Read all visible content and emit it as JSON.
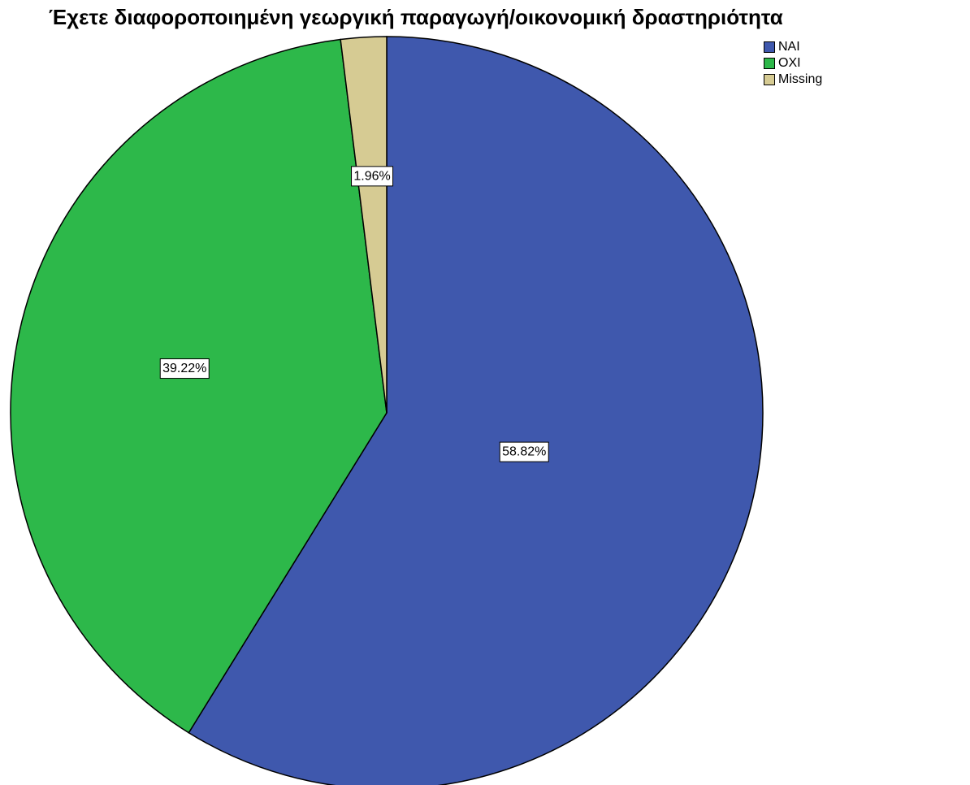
{
  "chart_data": {
    "type": "pie",
    "title": "Έχετε διαφοροποιημένη γεωργική παραγωγή/οικονομική δραστηριότητα",
    "legend_position": "top-right",
    "slices": [
      {
        "label": "NAI",
        "value": 58.82,
        "data_label": "58.82%",
        "color": "#3f58ad"
      },
      {
        "label": "OXI",
        "value": 39.22,
        "data_label": "39.22%",
        "color": "#2db84a"
      },
      {
        "label": "Missing",
        "value": 1.96,
        "data_label": "1.96%",
        "color": "#d6cb93"
      }
    ]
  }
}
